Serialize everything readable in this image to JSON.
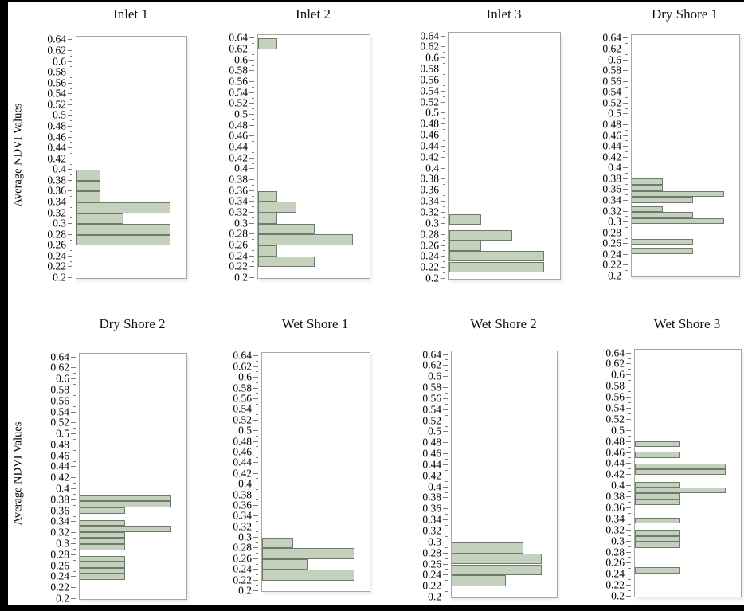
{
  "figure": {
    "y_axis_label": "Average NDVI Values",
    "y_tick_labels": [
      "0.64",
      "0.62",
      "0.6",
      "0.58",
      "0.56",
      "0.54",
      "0.52",
      "0.5",
      "0.48",
      "0.46",
      "0.44",
      "0.42",
      "0.4",
      "0.38",
      "0.36",
      "0.34",
      "0.32",
      "0.3",
      "0.28",
      "0.26",
      "0.24",
      "0.22",
      "0.2"
    ],
    "colors": {
      "bar_fill": "#c4d2bd",
      "bar_border": "#6e7a6c",
      "frame": "#a6a6a6",
      "tick": "#7a7a7a",
      "text": "#000000",
      "background": "#ffffff",
      "edge_bands": "#000000"
    }
  },
  "chart_data": [
    {
      "type": "bar",
      "orientation": "horizontal",
      "title": "Inlet 1",
      "xlabel": "",
      "ylabel": "Average NDVI Values",
      "ylim": [
        0.2,
        0.6465
      ],
      "xlim": [
        0,
        4.6
      ],
      "x_axis_labeled": false,
      "grid": false,
      "bins": [
        {
          "lo": 0.38,
          "hi": 0.4,
          "count": 1
        },
        {
          "lo": 0.36,
          "hi": 0.38,
          "count": 1
        },
        {
          "lo": 0.34,
          "hi": 0.36,
          "count": 1
        },
        {
          "lo": 0.32,
          "hi": 0.34,
          "count": 4
        },
        {
          "lo": 0.3,
          "hi": 0.32,
          "count": 2
        },
        {
          "lo": 0.28,
          "hi": 0.3,
          "count": 4
        },
        {
          "lo": 0.26,
          "hi": 0.28,
          "count": 4
        }
      ]
    },
    {
      "type": "bar",
      "orientation": "horizontal",
      "title": "Inlet 2",
      "xlabel": "",
      "ylabel": "Average NDVI Values",
      "ylim": [
        0.2,
        0.6465
      ],
      "xlim": [
        0,
        5.8
      ],
      "x_axis_labeled": false,
      "grid": false,
      "bins": [
        {
          "lo": 0.62,
          "hi": 0.64,
          "count": 1
        },
        {
          "lo": 0.34,
          "hi": 0.36,
          "count": 1
        },
        {
          "lo": 0.32,
          "hi": 0.34,
          "count": 2
        },
        {
          "lo": 0.3,
          "hi": 0.32,
          "count": 1
        },
        {
          "lo": 0.28,
          "hi": 0.3,
          "count": 3
        },
        {
          "lo": 0.26,
          "hi": 0.28,
          "count": 5
        },
        {
          "lo": 0.24,
          "hi": 0.26,
          "count": 1
        },
        {
          "lo": 0.22,
          "hi": 0.24,
          "count": 3
        }
      ]
    },
    {
      "type": "bar",
      "orientation": "horizontal",
      "title": "Inlet 3",
      "xlabel": "",
      "ylabel": "Average NDVI Values",
      "ylim": [
        0.2,
        0.6465
      ],
      "xlim": [
        0,
        3.45
      ],
      "x_axis_labeled": false,
      "grid": false,
      "bins": [
        {
          "lo": 0.298,
          "hi": 0.317,
          "count": 1
        },
        {
          "lo": 0.269,
          "hi": 0.288,
          "count": 2
        },
        {
          "lo": 0.25,
          "hi": 0.269,
          "count": 1
        },
        {
          "lo": 0.231,
          "hi": 0.25,
          "count": 3
        },
        {
          "lo": 0.212,
          "hi": 0.231,
          "count": 3
        }
      ]
    },
    {
      "type": "bar",
      "orientation": "horizontal",
      "title": "Dry Shore 1",
      "xlabel": "",
      "ylabel": "Average NDVI Values",
      "ylim": [
        0.2,
        0.6465
      ],
      "xlim": [
        0,
        3.45
      ],
      "x_axis_labeled": false,
      "grid": false,
      "bins": [
        {
          "lo": 0.37,
          "hi": 0.381,
          "count": 1
        },
        {
          "lo": 0.358,
          "hi": 0.37,
          "count": 1
        },
        {
          "lo": 0.347,
          "hi": 0.358,
          "count": 3
        },
        {
          "lo": 0.336,
          "hi": 0.347,
          "count": 2
        },
        {
          "lo": 0.319,
          "hi": 0.33,
          "count": 1
        },
        {
          "lo": 0.308,
          "hi": 0.319,
          "count": 2
        },
        {
          "lo": 0.297,
          "hi": 0.308,
          "count": 3
        },
        {
          "lo": 0.259,
          "hi": 0.27,
          "count": 2
        },
        {
          "lo": 0.242,
          "hi": 0.253,
          "count": 2
        }
      ]
    },
    {
      "type": "bar",
      "orientation": "horizontal",
      "title": "Dry Shore 2",
      "xlabel": "",
      "ylabel": "Average NDVI Values",
      "ylim": [
        0.2,
        0.6465
      ],
      "xlim": [
        0,
        2.3
      ],
      "x_axis_labeled": false,
      "grid": false,
      "bins": [
        {
          "lo": 0.378,
          "hi": 0.389,
          "count": 2
        },
        {
          "lo": 0.367,
          "hi": 0.378,
          "count": 2
        },
        {
          "lo": 0.355,
          "hi": 0.367,
          "count": 1
        },
        {
          "lo": 0.333,
          "hi": 0.344,
          "count": 1
        },
        {
          "lo": 0.322,
          "hi": 0.333,
          "count": 2
        },
        {
          "lo": 0.311,
          "hi": 0.322,
          "count": 1
        },
        {
          "lo": 0.3,
          "hi": 0.311,
          "count": 1
        },
        {
          "lo": 0.289,
          "hi": 0.3,
          "count": 1
        },
        {
          "lo": 0.268,
          "hi": 0.279,
          "count": 1
        },
        {
          "lo": 0.257,
          "hi": 0.268,
          "count": 1
        },
        {
          "lo": 0.246,
          "hi": 0.257,
          "count": 1
        },
        {
          "lo": 0.235,
          "hi": 0.246,
          "count": 1
        }
      ]
    },
    {
      "type": "bar",
      "orientation": "horizontal",
      "title": "Wet Shore 1",
      "xlabel": "",
      "ylabel": "Average NDVI Values",
      "ylim": [
        0.2,
        0.6465
      ],
      "xlim": [
        0,
        6.9
      ],
      "x_axis_labeled": false,
      "grid": false,
      "bins": [
        {
          "lo": 0.28,
          "hi": 0.3,
          "count": 2
        },
        {
          "lo": 0.26,
          "hi": 0.28,
          "count": 6
        },
        {
          "lo": 0.24,
          "hi": 0.26,
          "count": 3
        },
        {
          "lo": 0.22,
          "hi": 0.24,
          "count": 6
        }
      ]
    },
    {
      "type": "bar",
      "orientation": "horizontal",
      "title": "Wet Shore 2",
      "xlabel": "",
      "ylabel": "Average NDVI Values",
      "ylim": [
        0.2,
        0.6465
      ],
      "xlim": [
        0,
        5.78
      ],
      "x_axis_labeled": false,
      "grid": false,
      "bins": [
        {
          "lo": 0.28,
          "hi": 0.3,
          "count": 4
        },
        {
          "lo": 0.26,
          "hi": 0.28,
          "count": 5
        },
        {
          "lo": 0.24,
          "hi": 0.26,
          "count": 5
        },
        {
          "lo": 0.22,
          "hi": 0.24,
          "count": 3
        }
      ]
    },
    {
      "type": "bar",
      "orientation": "horizontal",
      "title": "Wet Shore 3",
      "xlabel": "",
      "ylabel": "Average NDVI Values",
      "ylim": [
        0.2,
        0.6465
      ],
      "xlim": [
        0,
        2.3
      ],
      "x_axis_labeled": false,
      "grid": false,
      "bins": [
        {
          "lo": 0.47,
          "hi": 0.481,
          "count": 1
        },
        {
          "lo": 0.451,
          "hi": 0.462,
          "count": 1
        },
        {
          "lo": 0.43,
          "hi": 0.441,
          "count": 2
        },
        {
          "lo": 0.42,
          "hi": 0.43,
          "count": 2
        },
        {
          "lo": 0.397,
          "hi": 0.408,
          "count": 1
        },
        {
          "lo": 0.387,
          "hi": 0.397,
          "count": 2
        },
        {
          "lo": 0.376,
          "hi": 0.387,
          "count": 1
        },
        {
          "lo": 0.365,
          "hi": 0.376,
          "count": 1
        },
        {
          "lo": 0.332,
          "hi": 0.343,
          "count": 1
        },
        {
          "lo": 0.31,
          "hi": 0.321,
          "count": 1
        },
        {
          "lo": 0.299,
          "hi": 0.31,
          "count": 1
        },
        {
          "lo": 0.288,
          "hi": 0.299,
          "count": 1
        },
        {
          "lo": 0.242,
          "hi": 0.253,
          "count": 1
        }
      ]
    }
  ]
}
